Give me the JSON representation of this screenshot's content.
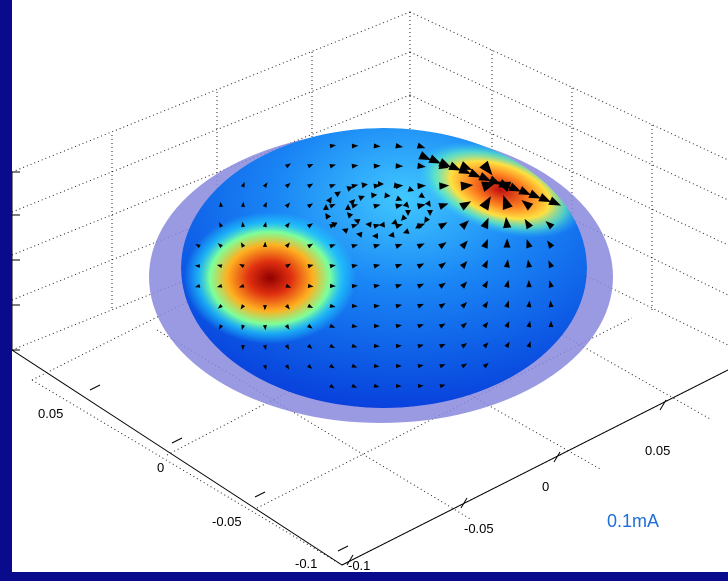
{
  "chart_data": {
    "type": "quiver-surface-3d",
    "axes": {
      "x": {
        "ticks": [
          "0.05",
          "0",
          "-0.05",
          "-0.1"
        ]
      },
      "y": {
        "ticks": [
          "-0.1",
          "-0.05",
          "0",
          "0.05"
        ]
      }
    },
    "annotations": [
      {
        "text": "0.1mA"
      }
    ],
    "colors": {
      "background": "#0a0a8c",
      "plot_background": "#ffffff",
      "disk_outline": "#8888dd",
      "colormap": [
        "#00008f",
        "#0050ff",
        "#00c0ff",
        "#70ff90",
        "#ffe000",
        "#ff4000",
        "#8f0000"
      ],
      "arrows": "#000000"
    },
    "features": {
      "grid": true,
      "surface_shading": "interp",
      "hotspots": [
        "left source",
        "upper-right edge source"
      ],
      "ring_vortex": "upper center"
    }
  }
}
